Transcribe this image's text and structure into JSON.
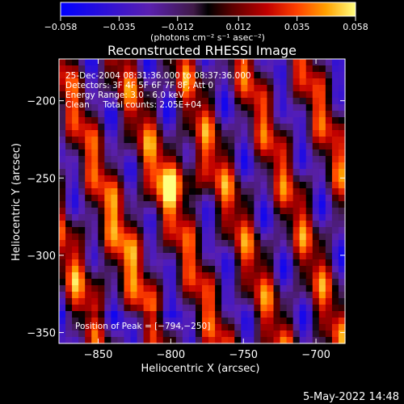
{
  "chart_data": {
    "type": "heatmap",
    "title": "Reconstructed RHESSI Image",
    "xlabel": "Heliocentric X (arcsec)",
    "ylabel": "Heliocentric Y (arcsec)",
    "xlim": [
      -877,
      -680
    ],
    "ylim": [
      -357,
      -173
    ],
    "x_ticks": [
      -850,
      -800,
      -750,
      -700
    ],
    "x_tick_labels": [
      "−850",
      "−800",
      "−750",
      "−700"
    ],
    "y_ticks": [
      -200,
      -250,
      -300,
      -350
    ],
    "y_tick_labels": [
      "−200",
      "−250",
      "−300",
      "−350"
    ],
    "colorbar": {
      "range": [
        -0.058,
        0.058
      ],
      "tick_labels": [
        "−0.058",
        "−0.035",
        "−0.012",
        "0.012",
        "0.035",
        "0.058"
      ],
      "units_label": "(photons cm⁻² s⁻¹ asec⁻²)"
    },
    "annotations": [
      "25-Dec-2004 08:31:36.000 to 08:37:36.000",
      "Detectors: 3F 4F 5F 6F 7F 8F, Att 0",
      "Energy Range: 3.0 - 6.0 keV",
      "Clean     Total counts: 2.05E+04"
    ],
    "peak_label": "Position of Peak = [−794,−250]",
    "peak_position": [
      -794,
      -250
    ],
    "colormap": [
      "#0000ff",
      "#5a20b0",
      "#401a48",
      "#000000",
      "#5a0000",
      "#c00000",
      "#ff4000",
      "#ffa000",
      "#ffff80"
    ]
  },
  "footer": {
    "timestamp": "5-May-2022 14:48"
  }
}
